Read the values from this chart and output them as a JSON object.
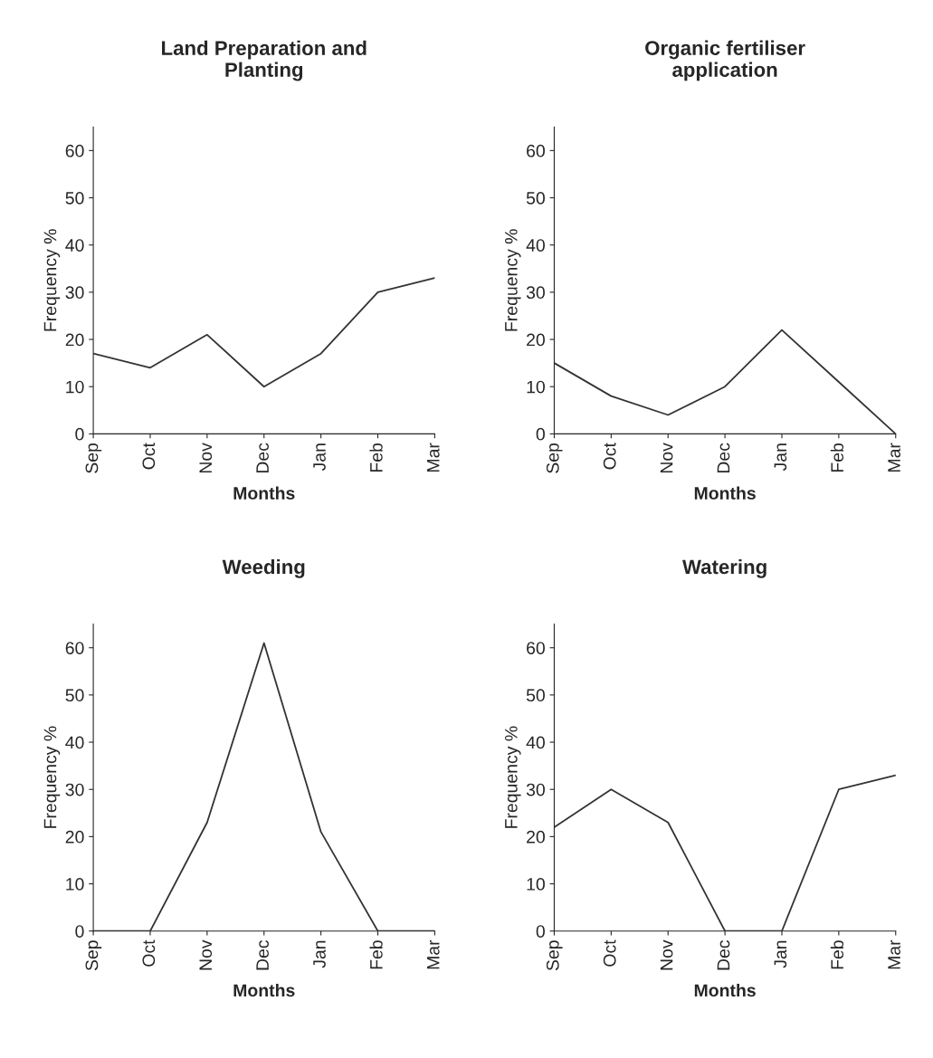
{
  "chart_data": [
    {
      "type": "line",
      "title": "Land Preparation and\nPlanting",
      "xlabel": "Months",
      "ylabel": "Frequency %",
      "categories": [
        "Sep",
        "Oct",
        "Nov",
        "Dec",
        "Jan",
        "Feb",
        "Mar"
      ],
      "series": [
        {
          "color": "#333333",
          "values": [
            17,
            14,
            21,
            10,
            17,
            30,
            33
          ]
        }
      ],
      "ylim": [
        0,
        65
      ],
      "yticks": [
        0,
        10,
        20,
        30,
        40,
        50,
        60
      ],
      "grid": false
    },
    {
      "type": "line",
      "title": "Organic fertiliser\napplication",
      "xlabel": "Months",
      "ylabel": "Frequency %",
      "categories": [
        "Sep",
        "Oct",
        "Nov",
        "Dec",
        "Jan",
        "Feb",
        "Mar"
      ],
      "series": [
        {
          "color": "#333333",
          "values": [
            15,
            8,
            4,
            10,
            22,
            11,
            0
          ]
        }
      ],
      "ylim": [
        0,
        65
      ],
      "yticks": [
        0,
        10,
        20,
        30,
        40,
        50,
        60
      ],
      "grid": false
    },
    {
      "type": "line",
      "title": "Weeding",
      "xlabel": "Months",
      "ylabel": "Frequency %",
      "categories": [
        "Sep",
        "Oct",
        "Nov",
        "Dec",
        "Jan",
        "Feb",
        "Mar"
      ],
      "series": [
        {
          "color": "#333333",
          "values": [
            0,
            0,
            23,
            61,
            21,
            0,
            0
          ]
        }
      ],
      "ylim": [
        0,
        65
      ],
      "yticks": [
        0,
        10,
        20,
        30,
        40,
        50,
        60
      ],
      "grid": false
    },
    {
      "type": "line",
      "title": "Watering",
      "xlabel": "Months",
      "ylabel": "Frequency %",
      "categories": [
        "Sep",
        "Oct",
        "Nov",
        "Dec",
        "Jan",
        "Feb",
        "Mar"
      ],
      "series": [
        {
          "color": "#333333",
          "values": [
            22,
            30,
            23,
            0,
            0,
            30,
            33
          ]
        }
      ],
      "ylim": [
        0,
        65
      ],
      "yticks": [
        0,
        10,
        20,
        30,
        40,
        50,
        60
      ],
      "grid": false
    }
  ]
}
